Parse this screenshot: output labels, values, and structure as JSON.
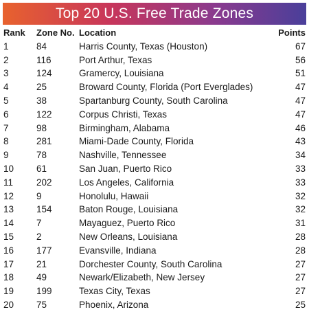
{
  "chart_data": {
    "type": "table",
    "title": "Top 20 U.S. Free Trade Zones",
    "columns": [
      "Rank",
      "Zone No.",
      "Location",
      "Points"
    ],
    "rows": [
      [
        "1",
        "84",
        "Harris County, Texas (Houston)",
        "67"
      ],
      [
        "2",
        "116",
        "Port Arthur, Texas",
        "56"
      ],
      [
        "3",
        "124",
        "Gramercy, Louisiana",
        "51"
      ],
      [
        "4",
        "25",
        "Broward County, Florida (Port Everglades)",
        "47"
      ],
      [
        "5",
        "38",
        "Spartanburg County, South Carolina",
        "47"
      ],
      [
        "6",
        "122",
        "Corpus Christi, Texas",
        "47"
      ],
      [
        "7",
        "98",
        "Birmingham, Alabama",
        "46"
      ],
      [
        "8",
        "281",
        "Miami-Dade County, Florida",
        "43"
      ],
      [
        "9",
        "78",
        "Nashville, Tennessee",
        "34"
      ],
      [
        "10",
        "61",
        "San Juan, Puerto Rico",
        "33"
      ],
      [
        "11",
        "202",
        "Los Angeles, California",
        "33"
      ],
      [
        "12",
        "9",
        "Honolulu, Hawaii",
        "32"
      ],
      [
        "13",
        "154",
        "Baton Rouge, Louisiana",
        "32"
      ],
      [
        "14",
        "7",
        "Mayaguez, Puerto Rico",
        "31"
      ],
      [
        "15",
        "2",
        "New Orleans, Louisiana",
        "28"
      ],
      [
        "16",
        "177",
        "Evansville, Indiana",
        "28"
      ],
      [
        "17",
        "21",
        "Dorchester County, South Carolina",
        "27"
      ],
      [
        "18",
        "49",
        "Newark/Elizabeth, New Jersey",
        "27"
      ],
      [
        "19",
        "199",
        "Texas City, Texas",
        "27"
      ],
      [
        "20",
        "75",
        "Phoenix, Arizona",
        "25"
      ]
    ]
  },
  "colors": {
    "title_gradient": [
      "#e8622e",
      "#c8365a",
      "#8a3a8e",
      "#4a3f9a"
    ],
    "title_text": "#ffffff",
    "body_text": "#1a1a1a"
  }
}
